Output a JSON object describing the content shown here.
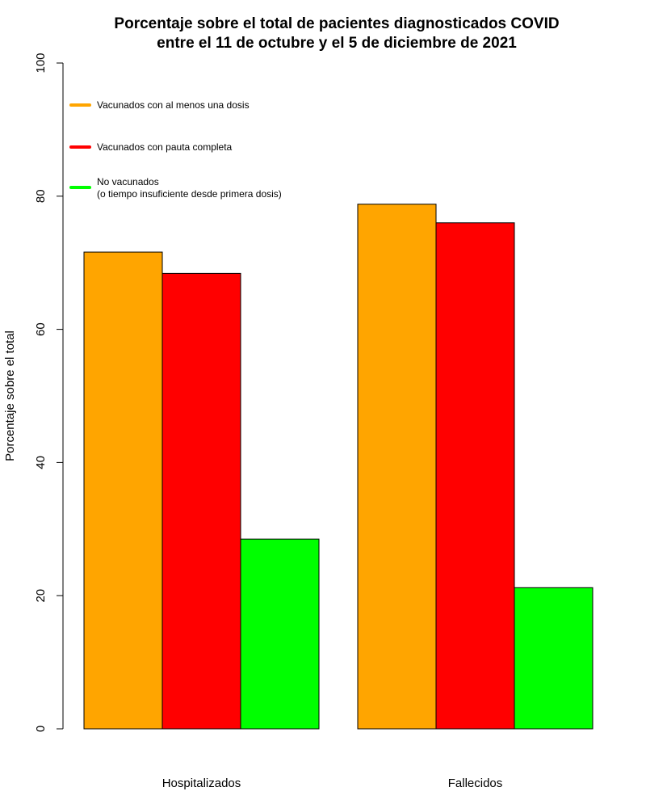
{
  "chart_data": {
    "type": "bar",
    "title_lines": [
      "Porcentaje sobre el total de pacientes diagnosticados COVID",
      "entre el 11 de octubre y el 5 de diciembre de 2021"
    ],
    "xlabel": "",
    "ylabel": "Porcentaje sobre el total",
    "ylim": [
      0,
      100
    ],
    "yticks": [
      0,
      20,
      40,
      60,
      80,
      100
    ],
    "grid": false,
    "categories": [
      "Hospitalizados",
      "Fallecidos"
    ],
    "series": [
      {
        "name": "Vacunados con al menos una dosis",
        "legend_lines": [
          "Vacunados con al menos una dosis"
        ],
        "color": "#ffa500",
        "values": [
          71.6,
          78.8
        ]
      },
      {
        "name": "Vacunados con pauta completa",
        "legend_lines": [
          "Vacunados con pauta completa"
        ],
        "color": "#ff0000",
        "values": [
          68.4,
          76.0
        ]
      },
      {
        "name": "No vacunados (o tiempo insuficiente desde primera dosis)",
        "legend_lines": [
          "No vacunados",
          "(o tiempo insuficiente desde primera dosis)"
        ],
        "color": "#00ff00",
        "values": [
          28.5,
          21.2
        ]
      }
    ],
    "legend_placement": "top-left"
  }
}
